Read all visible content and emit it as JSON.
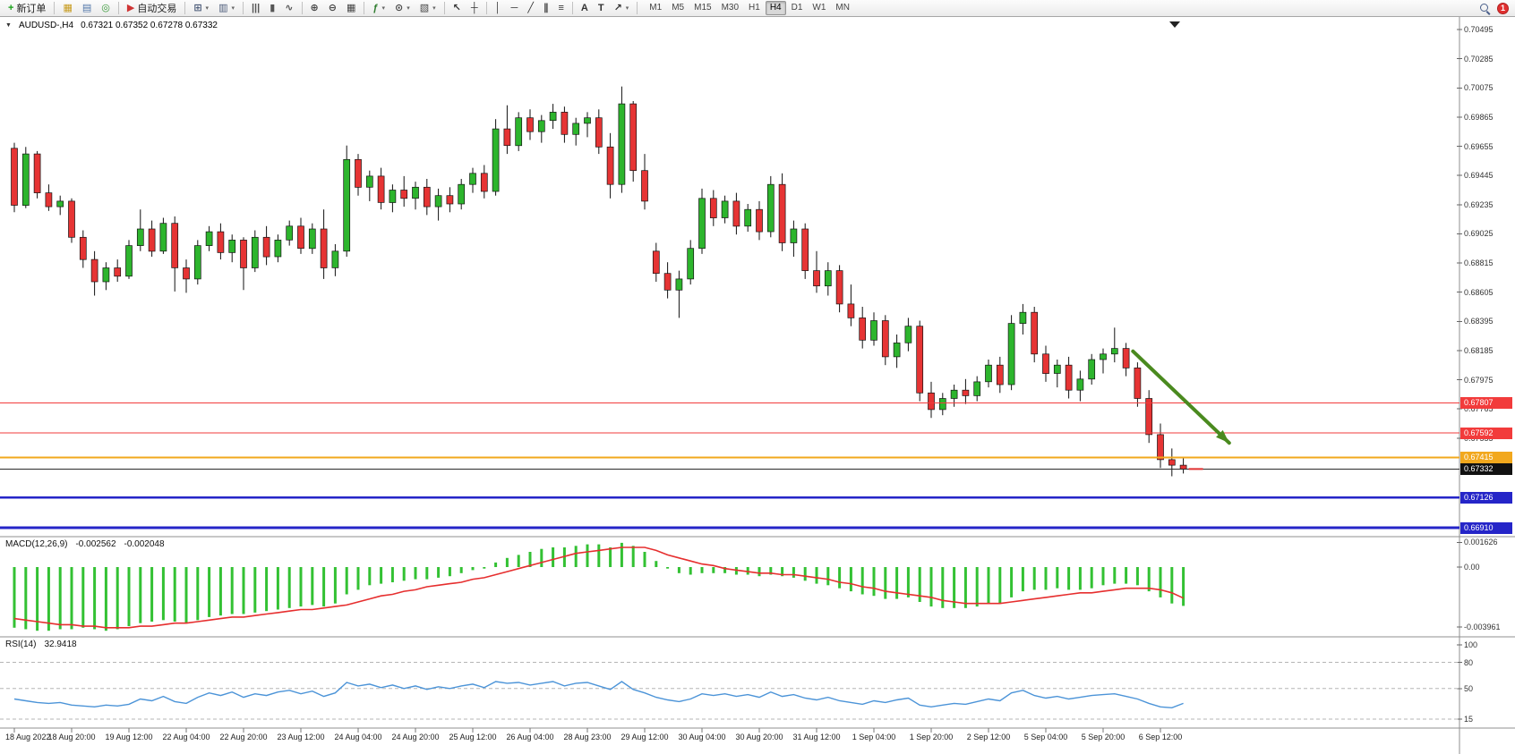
{
  "icons": {
    "collapse": "▼",
    "caret": "▾"
  },
  "toolbar": {
    "notification_count": "1",
    "buttons": [
      {
        "name": "new-order-button",
        "label": "新订单",
        "glyph": "+",
        "glyph_color": "#14a014"
      },
      {
        "sep": true
      },
      {
        "name": "market-watch-button",
        "glyph": "▦",
        "glyph_color": "#c79a1c"
      },
      {
        "name": "data-window-button",
        "glyph": "▤",
        "glyph_color": "#4f74a8"
      },
      {
        "name": "navigator-button",
        "glyph": "◎",
        "glyph_color": "#3a9a3a"
      },
      {
        "sep": true
      },
      {
        "name": "autotrade-button",
        "label": "自动交易",
        "glyph": "▶",
        "glyph_color": "#cf3434"
      },
      {
        "sep": true
      },
      {
        "name": "new-chart-button",
        "glyph": "⊞",
        "glyph_color": "#4a5a78",
        "dd": true
      },
      {
        "name": "profiles-button",
        "glyph": "▥",
        "glyph_color": "#4a5a78",
        "dd": true
      },
      {
        "sep": true
      },
      {
        "name": "bar-chart-button",
        "glyph": "|||",
        "glyph_color": "#555555"
      },
      {
        "name": "candle-chart-button",
        "glyph": "▮",
        "glyph_color": "#555555"
      },
      {
        "name": "line-chart-button",
        "glyph": "∿",
        "glyph_color": "#555555"
      },
      {
        "sep": true
      },
      {
        "name": "zoom-in-button",
        "glyph": "⊕",
        "glyph_color": "#444444"
      },
      {
        "name": "zoom-out-button",
        "glyph": "⊖",
        "glyph_color": "#444444"
      },
      {
        "name": "tile-windows-button",
        "glyph": "▦",
        "glyph_color": "#444444"
      },
      {
        "sep": true
      },
      {
        "name": "indicators-button",
        "glyph": "ƒ",
        "glyph_color": "#2f7d2f",
        "dd": true
      },
      {
        "name": "periods-button",
        "glyph": "⊙",
        "glyph_color": "#444444",
        "dd": true
      },
      {
        "name": "templates-button",
        "glyph": "▧",
        "glyph_color": "#444444",
        "dd": true
      },
      {
        "sep": true
      },
      {
        "name": "cursor-button",
        "glyph": "↖",
        "glyph_color": "#333333"
      },
      {
        "name": "crosshair-button",
        "glyph": "┼",
        "glyph_color": "#333333"
      },
      {
        "sep": true
      },
      {
        "name": "vline-button",
        "glyph": "│",
        "glyph_color": "#333333"
      },
      {
        "name": "hline-button",
        "glyph": "─",
        "glyph_color": "#333333"
      },
      {
        "name": "trendline-button",
        "glyph": "╱",
        "glyph_color": "#333333"
      },
      {
        "name": "channel-button",
        "glyph": "∥",
        "glyph_color": "#333333"
      },
      {
        "name": "fibonacci-button",
        "glyph": "≡",
        "glyph_color": "#333333"
      },
      {
        "sep": true
      },
      {
        "name": "text-button",
        "glyph": "A",
        "glyph_color": "#333333"
      },
      {
        "name": "text-label-button",
        "glyph": "T",
        "glyph_color": "#333333"
      },
      {
        "name": "arrows-button",
        "glyph": "↗",
        "glyph_color": "#333333",
        "dd": true
      },
      {
        "sep": true
      }
    ],
    "timeframes": [
      "M1",
      "M5",
      "M15",
      "M30",
      "H1",
      "H4",
      "D1",
      "W1",
      "MN"
    ],
    "active_timeframe": "H4"
  },
  "chart": {
    "symbol_label": "AUDUSD-,H4",
    "ohlc_text": "0.67321 0.67352 0.67278 0.67332",
    "open": "0.67321",
    "high": "0.67352",
    "low": "0.67278",
    "close": "0.67332",
    "price_ticks": [
      "0.70495",
      "0.70285",
      "0.70075",
      "0.69865",
      "0.69655",
      "0.69445",
      "0.69235",
      "0.69025",
      "0.68815",
      "0.68605",
      "0.68395",
      "0.68185",
      "0.67975",
      "0.67765",
      "0.67555"
    ],
    "time_labels": [
      "18 Aug 2022",
      "18 Aug 20:00",
      "19 Aug 12:00",
      "22 Aug 04:00",
      "22 Aug 20:00",
      "23 Aug 12:00",
      "24 Aug 04:00",
      "24 Aug 20:00",
      "25 Aug 12:00",
      "26 Aug 04:00",
      "28 Aug 23:00",
      "29 Aug 12:00",
      "30 Aug 04:00",
      "30 Aug 20:00",
      "31 Aug 12:00",
      "1 Sep 04:00",
      "1 Sep 20:00",
      "2 Sep 12:00",
      "5 Sep 04:00",
      "5 Sep 20:00",
      "6 Sep 12:00"
    ],
    "lines": [
      {
        "name": "resistance-line-1",
        "price": 0.67807,
        "label": "0.67807",
        "color": "#f23b3b",
        "width": 1.2
      },
      {
        "name": "resistance-line-2",
        "price": 0.67592,
        "label": "0.67592",
        "color": "#f23b3b",
        "width": 1.2
      },
      {
        "name": "support-line-orange",
        "price": 0.67415,
        "label": "0.67415",
        "color": "#f2a81d",
        "width": 2
      },
      {
        "name": "current-price-line",
        "price": 0.67332,
        "label": "0.67332",
        "color": "#2b2b2b",
        "width": 1,
        "label_bg": "#111111"
      },
      {
        "name": "support-line-blue-1",
        "price": 0.67126,
        "label": "0.67126",
        "color": "#2525c8",
        "width": 2.6
      },
      {
        "name": "support-line-blue-2",
        "price": 0.6691,
        "label": "0.66910",
        "color": "#2525c8",
        "width": 2.6
      }
    ],
    "arrow": {
      "from_index": 97.6,
      "from_price": 0.6818,
      "to_index": 106,
      "to_price": 0.6752,
      "color": "#4a8a1f"
    }
  },
  "macd": {
    "title": "MACD(12,26,9)",
    "main": "-0.002562",
    "signal": "-0.002048",
    "scale": [
      "0.001626",
      "0.00",
      "-0.003961"
    ]
  },
  "rsi": {
    "title": "RSI(14)",
    "value": "32.9418",
    "scale": [
      "100",
      "80",
      "50",
      "15"
    ],
    "levels": [
      80,
      50,
      15
    ]
  },
  "chart_data": {
    "type": "candlestick",
    "symbol": "AUDUSD",
    "timeframe": "H4",
    "up_color": "#2db52d",
    "down_color": "#e63434",
    "price_axis": {
      "max": 0.70495,
      "min": 0.6691,
      "tick_step": 0.0021
    },
    "candles": [
      [
        0.6964,
        0.6968,
        0.6918,
        0.6923
      ],
      [
        0.6923,
        0.6965,
        0.6921,
        0.696
      ],
      [
        0.696,
        0.6962,
        0.6928,
        0.6932
      ],
      [
        0.6932,
        0.6938,
        0.6919,
        0.6922
      ],
      [
        0.6922,
        0.693,
        0.6916,
        0.6926
      ],
      [
        0.6926,
        0.6928,
        0.6896,
        0.69
      ],
      [
        0.69,
        0.6905,
        0.6878,
        0.6884
      ],
      [
        0.6884,
        0.689,
        0.6858,
        0.6868
      ],
      [
        0.6868,
        0.6882,
        0.6862,
        0.6878
      ],
      [
        0.6878,
        0.6884,
        0.6868,
        0.6872
      ],
      [
        0.6872,
        0.6898,
        0.687,
        0.6894
      ],
      [
        0.6894,
        0.692,
        0.689,
        0.6906
      ],
      [
        0.6906,
        0.6912,
        0.6886,
        0.689
      ],
      [
        0.689,
        0.6914,
        0.6888,
        0.691
      ],
      [
        0.691,
        0.6915,
        0.6861,
        0.6878
      ],
      [
        0.6878,
        0.6884,
        0.686,
        0.687
      ],
      [
        0.687,
        0.6898,
        0.6866,
        0.6894
      ],
      [
        0.6894,
        0.6908,
        0.689,
        0.6904
      ],
      [
        0.6904,
        0.691,
        0.6884,
        0.6889
      ],
      [
        0.6889,
        0.6902,
        0.6882,
        0.6898
      ],
      [
        0.6898,
        0.69,
        0.6862,
        0.6878
      ],
      [
        0.6878,
        0.6905,
        0.6875,
        0.69
      ],
      [
        0.69,
        0.6908,
        0.688,
        0.6886
      ],
      [
        0.6886,
        0.6902,
        0.6882,
        0.6898
      ],
      [
        0.6898,
        0.6912,
        0.6894,
        0.6908
      ],
      [
        0.6908,
        0.6914,
        0.6888,
        0.6892
      ],
      [
        0.6892,
        0.691,
        0.6888,
        0.6906
      ],
      [
        0.6906,
        0.692,
        0.687,
        0.6878
      ],
      [
        0.6878,
        0.6895,
        0.6872,
        0.689
      ],
      [
        0.689,
        0.6966,
        0.6886,
        0.6956
      ],
      [
        0.6956,
        0.696,
        0.693,
        0.6936
      ],
      [
        0.6936,
        0.6948,
        0.6926,
        0.6944
      ],
      [
        0.6944,
        0.695,
        0.692,
        0.6925
      ],
      [
        0.6925,
        0.6938,
        0.6918,
        0.6934
      ],
      [
        0.6934,
        0.6944,
        0.6922,
        0.6928
      ],
      [
        0.6928,
        0.694,
        0.692,
        0.6936
      ],
      [
        0.6936,
        0.6942,
        0.6916,
        0.6922
      ],
      [
        0.6922,
        0.6935,
        0.6912,
        0.693
      ],
      [
        0.693,
        0.6936,
        0.6918,
        0.6924
      ],
      [
        0.6924,
        0.6942,
        0.692,
        0.6938
      ],
      [
        0.6938,
        0.695,
        0.6932,
        0.6946
      ],
      [
        0.6946,
        0.6952,
        0.6928,
        0.6933
      ],
      [
        0.6933,
        0.6985,
        0.693,
        0.6978
      ],
      [
        0.6978,
        0.6995,
        0.696,
        0.6966
      ],
      [
        0.6966,
        0.699,
        0.6962,
        0.6986
      ],
      [
        0.6986,
        0.6992,
        0.697,
        0.6976
      ],
      [
        0.6976,
        0.6988,
        0.6968,
        0.6984
      ],
      [
        0.6984,
        0.6996,
        0.6978,
        0.699
      ],
      [
        0.699,
        0.6994,
        0.6968,
        0.6974
      ],
      [
        0.6974,
        0.6986,
        0.6966,
        0.6982
      ],
      [
        0.6982,
        0.699,
        0.6972,
        0.6986
      ],
      [
        0.6986,
        0.6992,
        0.696,
        0.6965
      ],
      [
        0.6965,
        0.6975,
        0.6928,
        0.6938
      ],
      [
        0.6938,
        0.70085,
        0.6932,
        0.6996
      ],
      [
        0.6996,
        0.6998,
        0.694,
        0.6948
      ],
      [
        0.6948,
        0.696,
        0.692,
        0.6926
      ],
      [
        0.689,
        0.6896,
        0.6868,
        0.6874
      ],
      [
        0.6874,
        0.6882,
        0.6856,
        0.6862
      ],
      [
        0.6862,
        0.6876,
        0.6842,
        0.687
      ],
      [
        0.687,
        0.6898,
        0.6866,
        0.6892
      ],
      [
        0.6892,
        0.6935,
        0.6888,
        0.6928
      ],
      [
        0.6928,
        0.6934,
        0.6908,
        0.6914
      ],
      [
        0.6914,
        0.693,
        0.691,
        0.6926
      ],
      [
        0.6926,
        0.6932,
        0.6902,
        0.6908
      ],
      [
        0.6908,
        0.6924,
        0.6904,
        0.692
      ],
      [
        0.692,
        0.6926,
        0.6898,
        0.6904
      ],
      [
        0.6904,
        0.6944,
        0.69,
        0.6938
      ],
      [
        0.6938,
        0.6946,
        0.689,
        0.6896
      ],
      [
        0.6896,
        0.6912,
        0.6886,
        0.6906
      ],
      [
        0.6906,
        0.691,
        0.687,
        0.6876
      ],
      [
        0.6876,
        0.689,
        0.686,
        0.6865
      ],
      [
        0.6865,
        0.6882,
        0.6858,
        0.6876
      ],
      [
        0.6876,
        0.688,
        0.6846,
        0.6852
      ],
      [
        0.6852,
        0.6866,
        0.6836,
        0.6842
      ],
      [
        0.6842,
        0.685,
        0.682,
        0.6826
      ],
      [
        0.6826,
        0.6846,
        0.6822,
        0.684
      ],
      [
        0.684,
        0.6844,
        0.6808,
        0.6814
      ],
      [
        0.6814,
        0.683,
        0.6806,
        0.6824
      ],
      [
        0.6824,
        0.6842,
        0.6818,
        0.6836
      ],
      [
        0.6836,
        0.684,
        0.6782,
        0.6788
      ],
      [
        0.6788,
        0.6796,
        0.677,
        0.6776
      ],
      [
        0.6776,
        0.6788,
        0.6772,
        0.6784
      ],
      [
        0.6784,
        0.6794,
        0.6778,
        0.679
      ],
      [
        0.679,
        0.6798,
        0.678,
        0.6786
      ],
      [
        0.6786,
        0.68,
        0.6782,
        0.6796
      ],
      [
        0.6796,
        0.6812,
        0.6792,
        0.6808
      ],
      [
        0.6808,
        0.6814,
        0.6788,
        0.6794
      ],
      [
        0.6794,
        0.6844,
        0.679,
        0.6838
      ],
      [
        0.6838,
        0.6852,
        0.683,
        0.6846
      ],
      [
        0.6846,
        0.685,
        0.681,
        0.6816
      ],
      [
        0.6816,
        0.6822,
        0.6796,
        0.6802
      ],
      [
        0.6802,
        0.6812,
        0.6792,
        0.6808
      ],
      [
        0.6808,
        0.6814,
        0.6784,
        0.679
      ],
      [
        0.679,
        0.6804,
        0.6782,
        0.6798
      ],
      [
        0.6798,
        0.6816,
        0.6794,
        0.6812
      ],
      [
        0.6812,
        0.682,
        0.6802,
        0.6816
      ],
      [
        0.6816,
        0.6835,
        0.681,
        0.682
      ],
      [
        0.682,
        0.6824,
        0.68,
        0.6806
      ],
      [
        0.6806,
        0.681,
        0.6778,
        0.6784
      ],
      [
        0.6784,
        0.679,
        0.6752,
        0.6758
      ],
      [
        0.6758,
        0.6766,
        0.6734,
        0.674
      ],
      [
        0.674,
        0.6748,
        0.6728,
        0.6736
      ],
      [
        0.6736,
        0.6742,
        0.673,
        0.67332
      ]
    ],
    "macd_histogram": [
      -0.004,
      -0.0041,
      -0.0042,
      -0.0042,
      -0.0041,
      -0.0041,
      -0.004,
      -0.0041,
      -0.0042,
      -0.0041,
      -0.0039,
      -0.0037,
      -0.0036,
      -0.0035,
      -0.0036,
      -0.0037,
      -0.0035,
      -0.0033,
      -0.0032,
      -0.0031,
      -0.0031,
      -0.003,
      -0.0029,
      -0.0028,
      -0.0027,
      -0.0026,
      -0.0025,
      -0.0026,
      -0.0024,
      -0.0018,
      -0.0015,
      -0.0012,
      -0.0011,
      -0.001,
      -0.0009,
      -0.0008,
      -0.0008,
      -0.0007,
      -0.0006,
      -0.0004,
      -0.0002,
      -0.0001,
      0.0003,
      0.0006,
      0.0008,
      0.001,
      0.0012,
      0.0013,
      0.0013,
      0.0014,
      0.0015,
      0.0015,
      0.0013,
      0.0016,
      0.0014,
      0.001,
      0.0004,
      -0.0001,
      -0.0004,
      -0.0005,
      -0.0004,
      -0.0004,
      -0.0004,
      -0.0005,
      -0.0005,
      -0.0006,
      -0.0005,
      -0.0006,
      -0.0007,
      -0.0009,
      -0.0011,
      -0.0012,
      -0.0014,
      -0.0016,
      -0.0018,
      -0.0019,
      -0.0021,
      -0.0021,
      -0.002,
      -0.0023,
      -0.0026,
      -0.0027,
      -0.0027,
      -0.0027,
      -0.0026,
      -0.0024,
      -0.0024,
      -0.002,
      -0.0016,
      -0.0015,
      -0.0015,
      -0.0014,
      -0.0015,
      -0.0015,
      -0.0014,
      -0.0012,
      -0.0011,
      -0.0011,
      -0.0012,
      -0.0016,
      -0.002,
      -0.0024,
      -0.002562
    ],
    "macd_signal_line": [
      -0.0034,
      -0.0035,
      -0.0036,
      -0.0037,
      -0.0038,
      -0.0038,
      -0.0039,
      -0.0039,
      -0.004,
      -0.004,
      -0.004,
      -0.0039,
      -0.0039,
      -0.0038,
      -0.0037,
      -0.0037,
      -0.0036,
      -0.0035,
      -0.0034,
      -0.0033,
      -0.0033,
      -0.0032,
      -0.0031,
      -0.003,
      -0.0029,
      -0.0028,
      -0.0028,
      -0.0027,
      -0.0026,
      -0.0025,
      -0.0023,
      -0.0021,
      -0.0019,
      -0.0018,
      -0.0016,
      -0.0015,
      -0.0013,
      -0.0012,
      -0.0011,
      -0.001,
      -0.0008,
      -0.0007,
      -0.0005,
      -0.0003,
      -0.0001,
      0.0001,
      0.0003,
      0.0005,
      0.0007,
      0.0009,
      0.001,
      0.0011,
      0.0012,
      0.0013,
      0.0013,
      0.0013,
      0.0011,
      0.0008,
      0.0006,
      0.0004,
      0.0002,
      0.0001,
      -0.0001,
      -0.0002,
      -0.0003,
      -0.0004,
      -0.0004,
      -0.0005,
      -0.0005,
      -0.0006,
      -0.0007,
      -0.0008,
      -0.001,
      -0.0011,
      -0.0013,
      -0.0014,
      -0.0016,
      -0.0017,
      -0.0018,
      -0.0019,
      -0.002,
      -0.0022,
      -0.0023,
      -0.0024,
      -0.0024,
      -0.0024,
      -0.0024,
      -0.0023,
      -0.0022,
      -0.0021,
      -0.002,
      -0.0019,
      -0.0018,
      -0.0017,
      -0.0017,
      -0.0016,
      -0.0015,
      -0.0014,
      -0.0014,
      -0.0014,
      -0.0015,
      -0.0017,
      -0.002048
    ],
    "rsi_values": [
      38,
      36,
      34,
      33,
      34,
      31,
      30,
      29,
      31,
      30,
      32,
      38,
      36,
      41,
      35,
      33,
      40,
      45,
      42,
      46,
      40,
      44,
      42,
      46,
      48,
      44,
      47,
      41,
      45,
      57,
      53,
      55,
      51,
      54,
      50,
      53,
      49,
      52,
      50,
      53,
      55,
      51,
      58,
      56,
      57,
      54,
      56,
      58,
      53,
      56,
      57,
      53,
      49,
      58,
      49,
      45,
      40,
      37,
      35,
      38,
      44,
      42,
      44,
      41,
      43,
      40,
      46,
      41,
      43,
      39,
      37,
      40,
      36,
      34,
      32,
      36,
      34,
      37,
      39,
      31,
      29,
      31,
      33,
      32,
      35,
      38,
      36,
      45,
      48,
      42,
      39,
      41,
      38,
      40,
      42,
      43,
      44,
      41,
      38,
      33,
      29,
      28,
      32.9418
    ]
  }
}
